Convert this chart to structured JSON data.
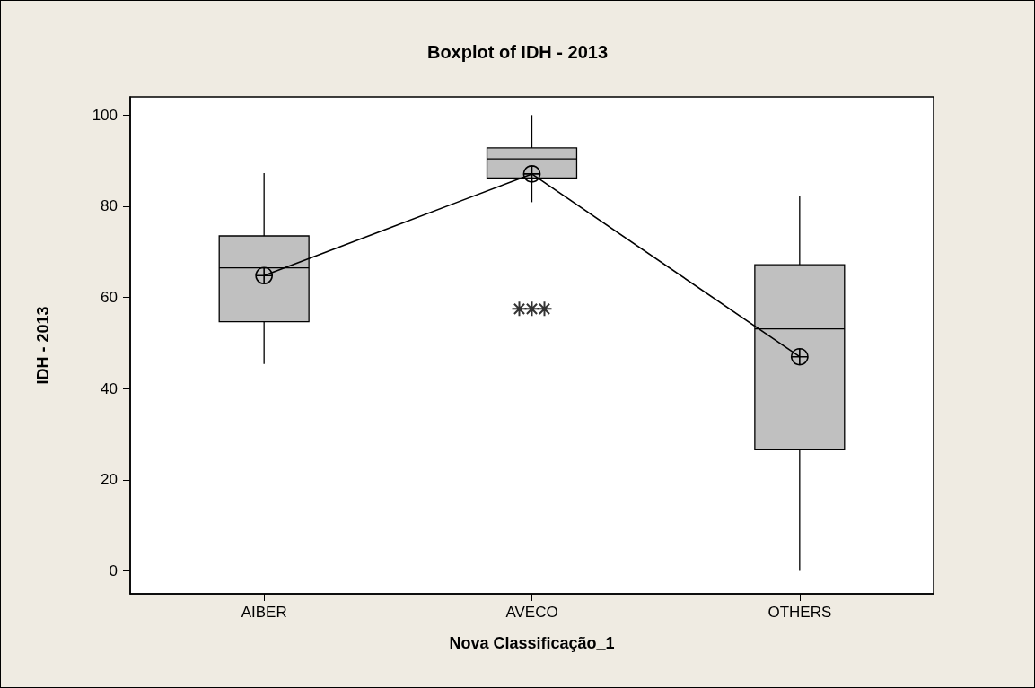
{
  "chart_data": {
    "type": "box",
    "title": "Boxplot of IDH - 2013",
    "xlabel": "Nova Classificação_1",
    "ylabel": "IDH - 2013",
    "categories": [
      "AIBER",
      "AVECO",
      "OTHERS"
    ],
    "boxes": [
      {
        "low": 45.4,
        "q1": 54.7,
        "median": 66.5,
        "q3": 73.5,
        "high": 87.3
      },
      {
        "low": 80.9,
        "q1": 86.2,
        "median": 90.4,
        "q3": 92.8,
        "high": 100,
        "outliers": [
          57.5,
          57.5,
          57.5
        ]
      },
      {
        "low": 0,
        "q1": 26.6,
        "median": 53.1,
        "q3": 67.2,
        "high": 82.2
      }
    ],
    "color": "#c0c0c0",
    "series": [
      {
        "type": "line",
        "color": "#000000",
        "values": [
          64.8,
          87.1,
          47.0
        ]
      }
    ],
    "ylim": [
      -5,
      104
    ],
    "yticks": [
      0,
      20,
      40,
      60,
      80,
      100
    ],
    "grid": false,
    "marker": "cross",
    "line_style": "solid"
  }
}
